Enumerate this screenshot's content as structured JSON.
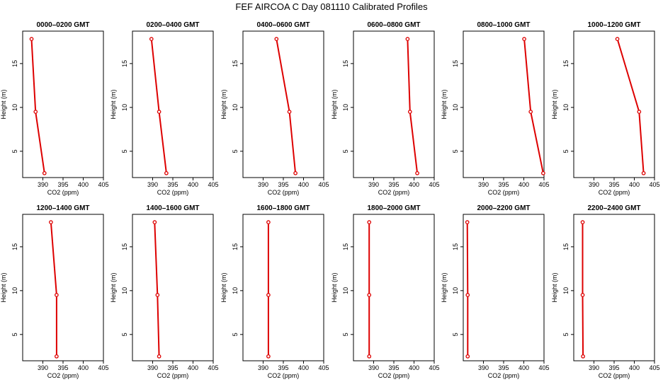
{
  "title": "FEF AIRCOA C  Day 081110  Calibrated Profiles",
  "colors": {
    "profile": "#dd0000",
    "axis": "#000000"
  },
  "chart_data": [
    {
      "type": "line",
      "title": "0000–0200 GMT",
      "xlabel": "CO2 (ppm)",
      "ylabel": "Height (m)",
      "xlim": [
        385,
        405
      ],
      "ylim": [
        2,
        18.7
      ],
      "xticks": [
        390,
        395,
        400,
        405
      ],
      "yticks": [
        5,
        10,
        15
      ],
      "x": [
        387.2,
        388.2,
        390.4
      ],
      "y": [
        17.8,
        9.5,
        2.5
      ]
    },
    {
      "type": "line",
      "title": "0200–0400 GMT",
      "xlabel": "CO2 (ppm)",
      "ylabel": "Height (m)",
      "xlim": [
        385,
        405
      ],
      "ylim": [
        2,
        18.7
      ],
      "xticks": [
        390,
        395,
        400,
        405
      ],
      "yticks": [
        5,
        10,
        15
      ],
      "x": [
        389.7,
        391.6,
        393.4
      ],
      "y": [
        17.8,
        9.5,
        2.5
      ]
    },
    {
      "type": "line",
      "title": "0400–0600 GMT",
      "xlabel": "CO2 (ppm)",
      "ylabel": "Height (m)",
      "xlim": [
        385,
        405
      ],
      "ylim": [
        2,
        18.7
      ],
      "xticks": [
        390,
        395,
        400,
        405
      ],
      "yticks": [
        5,
        10,
        15
      ],
      "x": [
        393.3,
        396.5,
        398.0
      ],
      "y": [
        17.8,
        9.5,
        2.5
      ]
    },
    {
      "type": "line",
      "title": "0600–0800 GMT",
      "xlabel": "CO2 (ppm)",
      "ylabel": "Height (m)",
      "xlim": [
        385,
        405
      ],
      "ylim": [
        2,
        18.7
      ],
      "xticks": [
        390,
        395,
        400,
        405
      ],
      "yticks": [
        5,
        10,
        15
      ],
      "x": [
        398.4,
        399.0,
        400.8
      ],
      "y": [
        17.8,
        9.5,
        2.5
      ]
    },
    {
      "type": "line",
      "title": "0800–1000 GMT",
      "xlabel": "CO2 (ppm)",
      "ylabel": "Height (m)",
      "xlim": [
        385,
        405
      ],
      "ylim": [
        2,
        18.7
      ],
      "xticks": [
        390,
        395,
        400,
        405
      ],
      "yticks": [
        5,
        10,
        15
      ],
      "x": [
        400.1,
        401.7,
        404.8
      ],
      "y": [
        17.8,
        9.5,
        2.5
      ]
    },
    {
      "type": "line",
      "title": "1000–1200 GMT",
      "xlabel": "CO2 (ppm)",
      "ylabel": "Height (m)",
      "xlim": [
        385,
        405
      ],
      "ylim": [
        2,
        18.7
      ],
      "xticks": [
        390,
        395,
        400,
        405
      ],
      "yticks": [
        5,
        10,
        15
      ],
      "x": [
        395.8,
        401.2,
        402.3
      ],
      "y": [
        17.8,
        9.5,
        2.5
      ]
    },
    {
      "type": "line",
      "title": "1200–1400 GMT",
      "xlabel": "CO2 (ppm)",
      "ylabel": "Height (m)",
      "xlim": [
        385,
        405
      ],
      "ylim": [
        2,
        18.7
      ],
      "xticks": [
        390,
        395,
        400,
        405
      ],
      "yticks": [
        5,
        10,
        15
      ],
      "x": [
        392.0,
        393.4,
        393.4
      ],
      "y": [
        17.8,
        9.5,
        2.5
      ]
    },
    {
      "type": "line",
      "title": "1400–1600 GMT",
      "xlabel": "CO2 (ppm)",
      "ylabel": "Height (m)",
      "xlim": [
        385,
        405
      ],
      "ylim": [
        2,
        18.7
      ],
      "xticks": [
        390,
        395,
        400,
        405
      ],
      "yticks": [
        5,
        10,
        15
      ],
      "x": [
        390.5,
        391.2,
        391.6
      ],
      "y": [
        17.8,
        9.5,
        2.5
      ]
    },
    {
      "type": "line",
      "title": "1600–1800 GMT",
      "xlabel": "CO2 (ppm)",
      "ylabel": "Height (m)",
      "xlim": [
        385,
        405
      ],
      "ylim": [
        2,
        18.7
      ],
      "xticks": [
        390,
        395,
        400,
        405
      ],
      "yticks": [
        5,
        10,
        15
      ],
      "x": [
        391.3,
        391.3,
        391.3
      ],
      "y": [
        17.8,
        9.5,
        2.5
      ]
    },
    {
      "type": "line",
      "title": "1800–2000 GMT",
      "xlabel": "CO2 (ppm)",
      "ylabel": "Height (m)",
      "xlim": [
        385,
        405
      ],
      "ylim": [
        2,
        18.7
      ],
      "xticks": [
        390,
        395,
        400,
        405
      ],
      "yticks": [
        5,
        10,
        15
      ],
      "x": [
        388.9,
        388.9,
        388.9
      ],
      "y": [
        17.8,
        9.5,
        2.5
      ]
    },
    {
      "type": "line",
      "title": "2000–2200 GMT",
      "xlabel": "CO2 (ppm)",
      "ylabel": "Height (m)",
      "xlim": [
        385,
        405
      ],
      "ylim": [
        2,
        18.7
      ],
      "xticks": [
        390,
        395,
        400,
        405
      ],
      "yticks": [
        5,
        10,
        15
      ],
      "x": [
        386.0,
        386.1,
        386.1
      ],
      "y": [
        17.8,
        9.5,
        2.5
      ]
    },
    {
      "type": "line",
      "title": "2200–2400 GMT",
      "xlabel": "CO2 (ppm)",
      "ylabel": "Height (m)",
      "xlim": [
        385,
        405
      ],
      "ylim": [
        2,
        18.7
      ],
      "xticks": [
        390,
        395,
        400,
        405
      ],
      "yticks": [
        5,
        10,
        15
      ],
      "x": [
        387.2,
        387.2,
        387.3
      ],
      "y": [
        17.8,
        9.5,
        2.5
      ]
    }
  ]
}
